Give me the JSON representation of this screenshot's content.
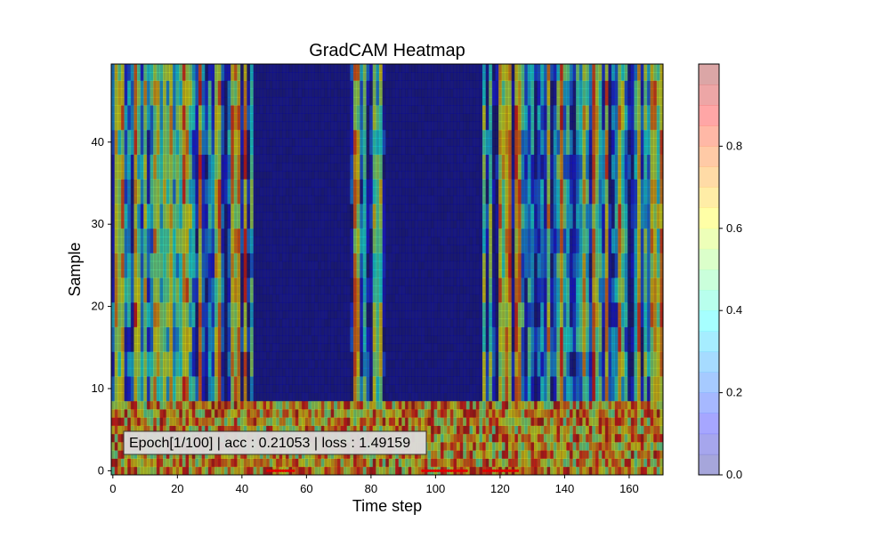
{
  "chart_data": {
    "type": "heatmap",
    "title": "GradCAM Heatmap",
    "xlabel": "Time step",
    "ylabel": "Sample",
    "xlim": [
      -0.5,
      170.5
    ],
    "ylim": [
      -0.5,
      49.5
    ],
    "xticks": [
      0,
      20,
      40,
      60,
      80,
      100,
      120,
      140,
      160
    ],
    "yticks": [
      0,
      10,
      20,
      30,
      40
    ],
    "n_time_steps": 171,
    "n_samples": 50,
    "colorbar": {
      "min": 0.0,
      "max": 1.0,
      "ticks": [
        0.0,
        0.2,
        0.4,
        0.6,
        0.8
      ],
      "tick_labels": [
        "0.0",
        "0.2",
        "0.4",
        "0.6",
        "0.8"
      ]
    },
    "regions": [
      {
        "rows": "0-8",
        "description": "high activation band near bottom samples"
      },
      {
        "cols": "44-73",
        "rows": "9-49",
        "value": 0.02
      },
      {
        "cols": "85-114",
        "rows": "9-49",
        "value": 0.02
      }
    ],
    "annotation": "Epoch[1/100] | acc : 0.21053 | loss : 1.49159",
    "grid": false,
    "legend": "none"
  }
}
